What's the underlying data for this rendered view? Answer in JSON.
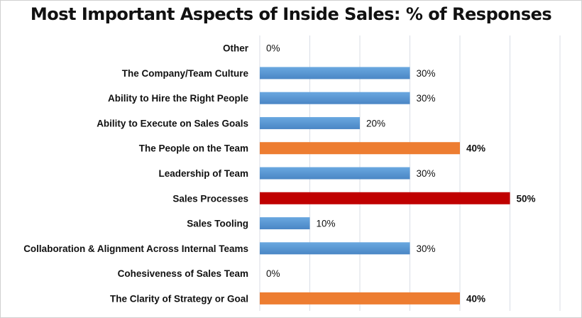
{
  "chart_data": {
    "type": "bar",
    "orientation": "horizontal",
    "title": "Most Important Aspects of Inside Sales: % of Responses",
    "categories": [
      "Other",
      "The Company/Team Culture",
      "Ability to Hire the Right People",
      "Ability to Execute on Sales Goals",
      "The People on the Team",
      "Leadership of Team",
      "Sales Processes",
      "Sales Tooling",
      "Collaboration & Alignment Across Internal Teams",
      "Cohesiveness of Sales Team",
      "The Clarity of Strategy or Goal"
    ],
    "values": [
      0,
      30,
      30,
      20,
      40,
      30,
      50,
      10,
      30,
      0,
      40
    ],
    "data_labels": [
      "0%",
      "30%",
      "30%",
      "20%",
      "40%",
      "30%",
      "50%",
      "10%",
      "30%",
      "0%",
      "40%"
    ],
    "highlight": [
      "normal",
      "normal",
      "normal",
      "normal",
      "second",
      "normal",
      "top",
      "normal",
      "normal",
      "normal",
      "second"
    ],
    "xlim": [
      0,
      60
    ],
    "grid": true,
    "xlabel": "",
    "ylabel": "",
    "colors": {
      "normal": "#5b9bd5",
      "second": "#ed7d31",
      "top": "#c00000",
      "grid": "#d9dde6"
    }
  }
}
